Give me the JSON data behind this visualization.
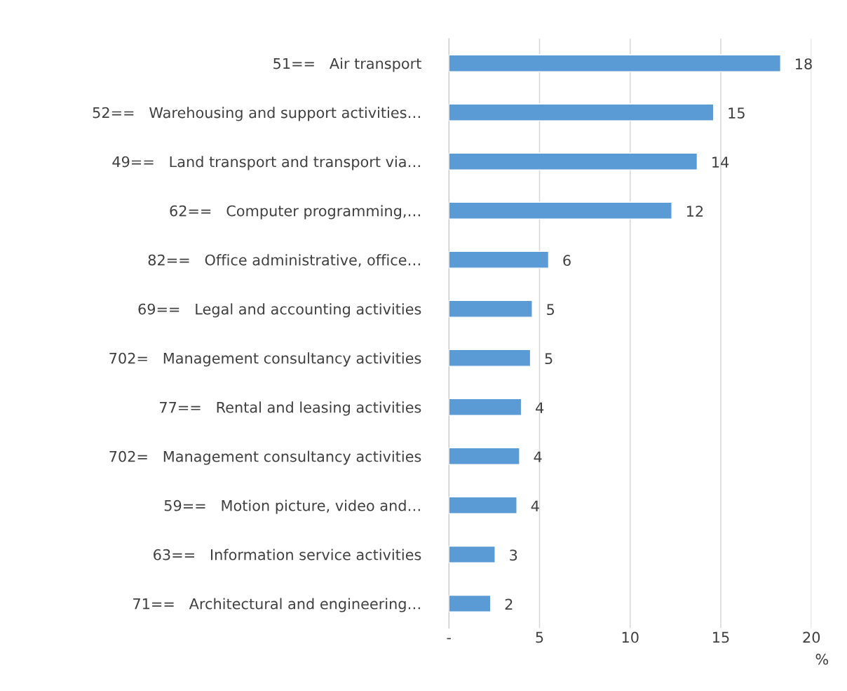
{
  "chart_data": {
    "type": "bar",
    "orientation": "horizontal",
    "categories": [
      "51==   Air transport",
      "52==   Warehousing and support activities…",
      "49==   Land transport and transport via…",
      "62==   Computer programming,…",
      "82==   Office administrative, office…",
      "69==   Legal and accounting activities",
      "702=   Management consultancy activities",
      "77==   Rental and leasing activities",
      "702=   Management consultancy activities",
      "59==   Motion picture, video and…",
      "63==   Information service activities",
      "71==   Architectural and engineering…"
    ],
    "values": [
      18.3,
      14.6,
      13.7,
      12.3,
      5.5,
      4.6,
      4.5,
      4.0,
      3.9,
      3.75,
      2.55,
      2.3
    ],
    "value_labels": [
      "18",
      "15",
      "14",
      "12",
      "6",
      "5",
      "5",
      "4",
      "4",
      "4",
      "3",
      "2"
    ],
    "color": "#5b9bd5",
    "xlim": [
      0,
      20
    ],
    "xticks": [
      {
        "value": 0,
        "label": "-"
      },
      5,
      10,
      15,
      20
    ],
    "xlabel": "%",
    "grid": "x",
    "legend": false
  }
}
